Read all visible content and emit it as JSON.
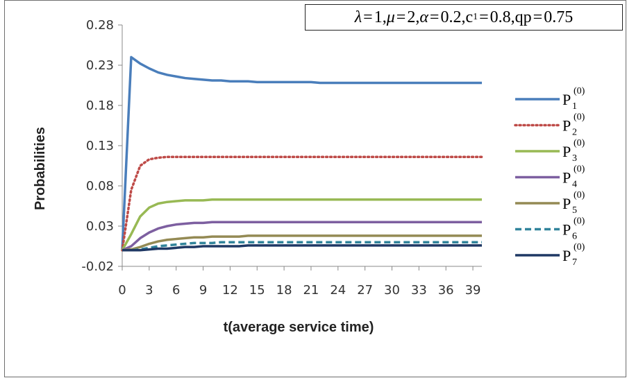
{
  "parameters": {
    "lambda_sym": "λ",
    "lambda_val": "1",
    "mu_sym": "μ",
    "mu_val": "2",
    "alpha_sym": "α",
    "alpha_val": "0.2",
    "c1_sym": "c",
    "c1_sub": "1",
    "c1_val": "0.8",
    "qp_sym": "qp",
    "qp_val": "0.75"
  },
  "chart_data": {
    "type": "line",
    "title": "",
    "xlabel": "t(average service time)",
    "ylabel": "Probabilities",
    "xlim": [
      0,
      40
    ],
    "ylim": [
      -0.02,
      0.28
    ],
    "x_ticks": [
      "0",
      "3",
      "6",
      "9",
      "12",
      "15",
      "18",
      "21",
      "24",
      "27",
      "30",
      "33",
      "36",
      "39"
    ],
    "y_ticks": [
      "0.28",
      "0.23",
      "0.18",
      "0.13",
      "0.08",
      "0.03",
      "-0.02"
    ],
    "grid": false,
    "legend_position": "right",
    "x": [
      0,
      1,
      2,
      3,
      4,
      5,
      6,
      7,
      8,
      9,
      10,
      11,
      12,
      13,
      14,
      15,
      16,
      17,
      18,
      19,
      20,
      21,
      22,
      23,
      24,
      25,
      26,
      27,
      28,
      29,
      30,
      31,
      32,
      33,
      34,
      35,
      36,
      37,
      38,
      39,
      40
    ],
    "series": [
      {
        "name": "P1(0)",
        "label_main": "P",
        "label_sub": "1",
        "label_sup": "(0)",
        "color": "#4a7ebb",
        "dash": "solid",
        "values": [
          0,
          0.24,
          0.232,
          0.226,
          0.221,
          0.218,
          0.216,
          0.214,
          0.213,
          0.212,
          0.211,
          0.211,
          0.21,
          0.21,
          0.21,
          0.209,
          0.209,
          0.209,
          0.209,
          0.209,
          0.209,
          0.209,
          0.208,
          0.208,
          0.208,
          0.208,
          0.208,
          0.208,
          0.208,
          0.208,
          0.208,
          0.208,
          0.208,
          0.208,
          0.208,
          0.208,
          0.208,
          0.208,
          0.208,
          0.208,
          0.208
        ]
      },
      {
        "name": "P2(0)",
        "label_main": "P",
        "label_sub": "2",
        "label_sup": "(0)",
        "color": "#be4b48",
        "dash": "dotted",
        "values": [
          0,
          0.075,
          0.105,
          0.113,
          0.115,
          0.116,
          0.116,
          0.116,
          0.116,
          0.116,
          0.116,
          0.116,
          0.116,
          0.116,
          0.116,
          0.116,
          0.116,
          0.116,
          0.116,
          0.116,
          0.116,
          0.116,
          0.116,
          0.116,
          0.116,
          0.116,
          0.116,
          0.116,
          0.116,
          0.116,
          0.116,
          0.116,
          0.116,
          0.116,
          0.116,
          0.116,
          0.116,
          0.116,
          0.116,
          0.116,
          0.116
        ]
      },
      {
        "name": "P3(0)",
        "label_main": "P",
        "label_sub": "3",
        "label_sup": "(0)",
        "color": "#98b954",
        "dash": "solid",
        "values": [
          0,
          0.02,
          0.042,
          0.053,
          0.058,
          0.06,
          0.061,
          0.062,
          0.062,
          0.062,
          0.063,
          0.063,
          0.063,
          0.063,
          0.063,
          0.063,
          0.063,
          0.063,
          0.063,
          0.063,
          0.063,
          0.063,
          0.063,
          0.063,
          0.063,
          0.063,
          0.063,
          0.063,
          0.063,
          0.063,
          0.063,
          0.063,
          0.063,
          0.063,
          0.063,
          0.063,
          0.063,
          0.063,
          0.063,
          0.063,
          0.063
        ]
      },
      {
        "name": "P4(0)",
        "label_main": "P",
        "label_sub": "4",
        "label_sup": "(0)",
        "color": "#7d5fa0",
        "dash": "solid",
        "values": [
          0,
          0.005,
          0.015,
          0.022,
          0.027,
          0.03,
          0.032,
          0.033,
          0.034,
          0.034,
          0.035,
          0.035,
          0.035,
          0.035,
          0.035,
          0.035,
          0.035,
          0.035,
          0.035,
          0.035,
          0.035,
          0.035,
          0.035,
          0.035,
          0.035,
          0.035,
          0.035,
          0.035,
          0.035,
          0.035,
          0.035,
          0.035,
          0.035,
          0.035,
          0.035,
          0.035,
          0.035,
          0.035,
          0.035,
          0.035,
          0.035
        ]
      },
      {
        "name": "P5(0)",
        "label_main": "P",
        "label_sub": "5",
        "label_sup": "(0)",
        "color": "#948a54",
        "dash": "solid",
        "values": [
          0,
          0.001,
          0.004,
          0.008,
          0.011,
          0.013,
          0.014,
          0.015,
          0.016,
          0.016,
          0.017,
          0.017,
          0.017,
          0.017,
          0.018,
          0.018,
          0.018,
          0.018,
          0.018,
          0.018,
          0.018,
          0.018,
          0.018,
          0.018,
          0.018,
          0.018,
          0.018,
          0.018,
          0.018,
          0.018,
          0.018,
          0.018,
          0.018,
          0.018,
          0.018,
          0.018,
          0.018,
          0.018,
          0.018,
          0.018,
          0.018
        ]
      },
      {
        "name": "P6(0)",
        "label_main": "P",
        "label_sub": "6",
        "label_sup": "(0)",
        "color": "#31849b",
        "dash": "dashed",
        "values": [
          0,
          0.0,
          0.001,
          0.003,
          0.005,
          0.006,
          0.007,
          0.008,
          0.009,
          0.009,
          0.009,
          0.01,
          0.01,
          0.01,
          0.01,
          0.01,
          0.01,
          0.01,
          0.01,
          0.01,
          0.01,
          0.01,
          0.01,
          0.01,
          0.01,
          0.01,
          0.01,
          0.01,
          0.01,
          0.01,
          0.01,
          0.01,
          0.01,
          0.01,
          0.01,
          0.01,
          0.01,
          0.01,
          0.01,
          0.01,
          0.01
        ]
      },
      {
        "name": "P7(0)",
        "label_main": "P",
        "label_sub": "7",
        "label_sup": "(0)",
        "color": "#1f3864",
        "dash": "solid",
        "values": [
          0,
          0.0,
          0.0,
          0.001,
          0.002,
          0.002,
          0.003,
          0.004,
          0.004,
          0.005,
          0.005,
          0.005,
          0.005,
          0.005,
          0.006,
          0.006,
          0.006,
          0.006,
          0.006,
          0.006,
          0.006,
          0.006,
          0.006,
          0.006,
          0.006,
          0.006,
          0.006,
          0.006,
          0.006,
          0.006,
          0.006,
          0.006,
          0.006,
          0.006,
          0.006,
          0.006,
          0.006,
          0.006,
          0.006,
          0.006,
          0.006
        ]
      }
    ]
  }
}
